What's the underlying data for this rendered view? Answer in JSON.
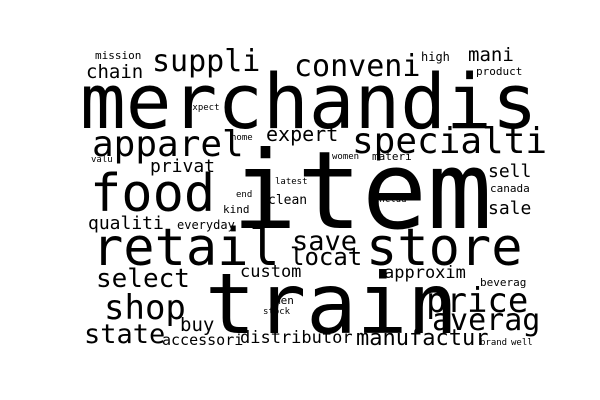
{
  "word_cloud": {
    "background_color": "#ffffff",
    "text_color": "#000000",
    "words": [
      "merchandis",
      "item",
      "train",
      "retail",
      "store",
      "food",
      "specialti",
      "apparel",
      "price",
      "shop",
      "suppli",
      "conveni",
      "averag",
      "save",
      "state",
      "select",
      "locat",
      "manufactur",
      "chain",
      "mani",
      "expert",
      "privat",
      "qualiti",
      "sale",
      "sell",
      "custom",
      "approxim",
      "buy",
      "distributor",
      "accessori",
      "clean",
      "mission",
      "high",
      "product",
      "expect",
      "home",
      "valu",
      "women",
      "materi",
      "canada",
      "latest",
      "end",
      "kind",
      "everyday",
      "includ",
      "beverag",
      "men",
      "stock",
      "brand",
      "well"
    ],
    "vertical_words": [
      "includ"
    ]
  }
}
